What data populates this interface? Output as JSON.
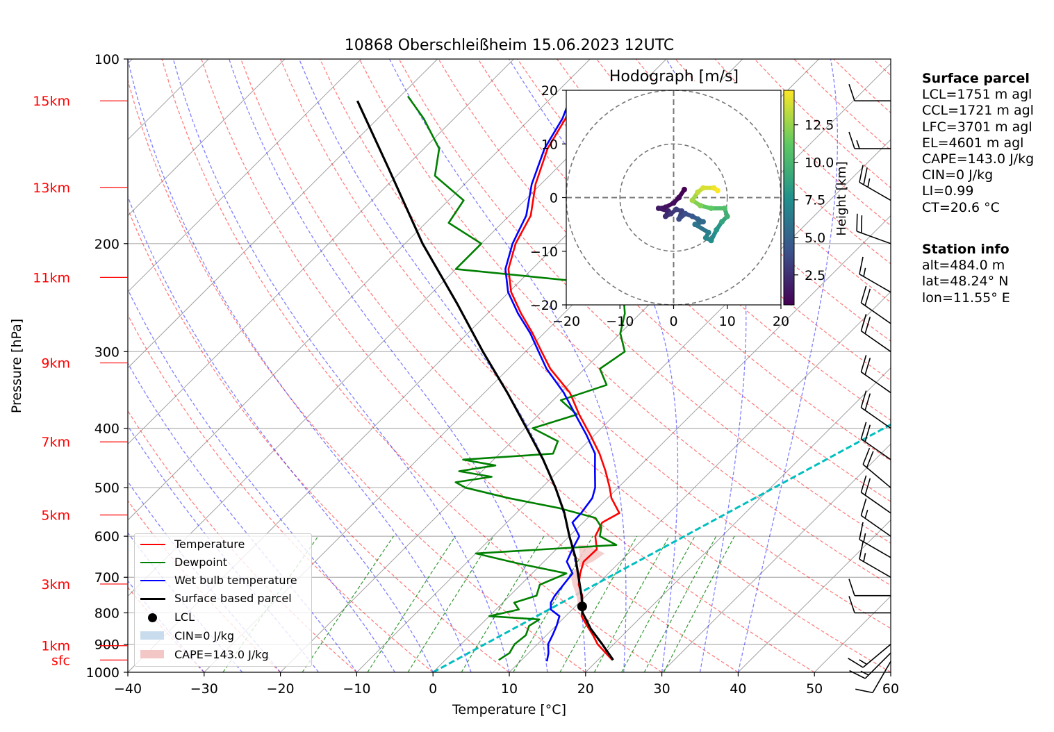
{
  "title": "10868 Oberschleißheim 15.06.2023 12UTC",
  "chart_data": {
    "type": "skew-t",
    "xlabel": "Temperature [°C]",
    "ylabel": "Pressure [hPa]",
    "xlim": [
      -40,
      60
    ],
    "ylim": [
      1000,
      100
    ],
    "x_ticks": [
      -40,
      -30,
      -20,
      -10,
      0,
      10,
      20,
      30,
      40,
      50,
      60
    ],
    "x_tick_labels": [
      "−40",
      "−30",
      "−20",
      "−10",
      "0",
      "10",
      "20",
      "30",
      "40",
      "50",
      "60"
    ],
    "pressure_ticks": [
      1000,
      900,
      800,
      700,
      600,
      500,
      400,
      300,
      200,
      100
    ],
    "pressure_tick_labels": [
      "1000",
      "900",
      "800",
      "700",
      "600",
      "500",
      "400",
      "300",
      "200",
      "100"
    ],
    "height_labels": [
      {
        "label": "sfc",
        "p": 955
      },
      {
        "label": "1km",
        "p": 905
      },
      {
        "label": "3km",
        "p": 718
      },
      {
        "label": "5km",
        "p": 554
      },
      {
        "label": "7km",
        "p": 421
      },
      {
        "label": "9km",
        "p": 313
      },
      {
        "label": "11km",
        "p": 227
      },
      {
        "label": "13km",
        "p": 162
      },
      {
        "label": "15km",
        "p": 117
      }
    ],
    "height_label_color": "#ff0000",
    "skew_factor": 35,
    "grid": true,
    "series": [
      {
        "name": "Temperature",
        "color": "#ff0000",
        "p": [
          955,
          930,
          900,
          870,
          840,
          810,
          780,
          750,
          720,
          690,
          660,
          630,
          600,
          570,
          550,
          520,
          500,
          470,
          440,
          410,
          380,
          350,
          320,
          300,
          280,
          260,
          240,
          220,
          200,
          180,
          160,
          140,
          125,
          115
        ],
        "t": [
          21.9,
          20.1,
          17.9,
          16.1,
          14.1,
          12.1,
          10.9,
          9.5,
          7.6,
          6.3,
          5.2,
          5.3,
          3.4,
          2.5,
          3.5,
          0.5,
          -1.1,
          -3.8,
          -6.9,
          -10.6,
          -14.7,
          -18.8,
          -24.5,
          -27.9,
          -31.5,
          -35.6,
          -39.7,
          -43.1,
          -45.5,
          -47.2,
          -50.7,
          -53.8,
          -55.4,
          -57.2
        ]
      },
      {
        "name": "Dewpoint",
        "color": "#008000",
        "p": [
          955,
          930,
          900,
          870,
          840,
          820,
          810,
          790,
          770,
          750,
          720,
          690,
          665,
          640,
          620,
          600,
          580,
          560,
          540,
          520,
          500,
          490,
          480,
          470,
          460,
          450,
          440,
          420,
          400,
          380,
          360,
          340,
          320,
          300,
          280,
          260,
          240,
          230,
          220,
          200,
          185,
          170,
          155,
          140,
          125,
          115
        ],
        "t": [
          7.0,
          7.5,
          7.0,
          7.3,
          6.5,
          7.0,
          0.0,
          3.0,
          1.5,
          3.5,
          2.5,
          4.5,
          -3.0,
          -10.0,
          7.3,
          4.0,
          3.0,
          1.0,
          -5.0,
          -13.0,
          -20.0,
          -22.0,
          -18.0,
          -23.0,
          -19.0,
          -24.0,
          -13.0,
          -14.0,
          -19.0,
          -15.0,
          -19.0,
          -15.0,
          -18.0,
          -17.0,
          -20.0,
          -22.0,
          -25.0,
          -33.0,
          -50.0,
          -50.0,
          -57.0,
          -58.0,
          -65.0,
          -68.0,
          -74.0,
          -79.0
        ]
      },
      {
        "name": "Wet bulb temperature",
        "color": "#0000ff",
        "p": [
          960,
          930,
          900,
          870,
          840,
          810,
          790,
          770,
          750,
          720,
          690,
          660,
          630,
          600,
          570,
          550,
          520,
          500,
          470,
          440,
          410,
          380,
          350,
          320,
          300,
          280,
          260,
          240,
          220,
          200,
          180,
          160,
          140,
          125,
          115
        ],
        "t": [
          13.5,
          12.6,
          11.4,
          10.8,
          10.1,
          9.2,
          7.2,
          6.3,
          5.9,
          5.6,
          5.3,
          3.0,
          2.1,
          1.3,
          -1.4,
          -1.5,
          -2.0,
          -3.0,
          -5.2,
          -7.5,
          -11.1,
          -15.2,
          -19.6,
          -25.0,
          -28.3,
          -31.8,
          -36.0,
          -40.1,
          -43.5,
          -45.9,
          -47.8,
          -51.2,
          -54.2,
          -55.8,
          -57.6
        ]
      },
      {
        "name": "Surface based parcel",
        "color": "#000000",
        "p": [
          955,
          900,
          850,
          800,
          781,
          750,
          700,
          650,
          600,
          550,
          500,
          450,
          400,
          350,
          300,
          250,
          200,
          150,
          117
        ],
        "t": [
          22.0,
          18.5,
          15.0,
          11.8,
          10.9,
          9.4,
          6.6,
          3.6,
          0.0,
          -3.7,
          -8.2,
          -13.5,
          -19.8,
          -27.0,
          -35.6,
          -45.4,
          -57.7,
          -72.3,
          -85.0
        ]
      }
    ],
    "lcl": {
      "label": "LCL",
      "p": 781,
      "t": 10.9
    },
    "cin_label": "CIN=0 J/kg",
    "cape_label": "CAPE=143.0 J/kg",
    "cape_region": {
      "p": [
        780,
        760,
        740,
        720,
        700,
        680,
        660,
        640,
        620
      ],
      "t_parcel": [
        10.9,
        10.1,
        8.9,
        7.5,
        6.6,
        5.6,
        4.6,
        3.6,
        2.3
      ],
      "t_env": [
        10.3,
        9.3,
        8.1,
        6.8,
        5.6,
        5.0,
        6.4,
        6.9,
        3.4
      ]
    },
    "cyan_line": {
      "color": "#00bfbf",
      "points": [
        {
          "p": 1000,
          "t": 0
        },
        {
          "p": 145,
          "t": 57
        }
      ]
    },
    "legend": {
      "position": "lower left",
      "entries": [
        "Temperature",
        "Dewpoint",
        "Wet bulb temperature",
        "Surface based parcel",
        "LCL",
        "CIN=0 J/kg",
        "CAPE=143.0 J/kg"
      ]
    },
    "wind_barbs": [
      {
        "p": 960,
        "dir": 210,
        "spd_kt": 10
      },
      {
        "p": 930,
        "dir": 225,
        "spd_kt": 15
      },
      {
        "p": 900,
        "dir": 230,
        "spd_kt": 15
      },
      {
        "p": 800,
        "dir": 270,
        "spd_kt": 10
      },
      {
        "p": 750,
        "dir": 270,
        "spd_kt": 10
      },
      {
        "p": 700,
        "dir": 300,
        "spd_kt": 15
      },
      {
        "p": 650,
        "dir": 300,
        "spd_kt": 15
      },
      {
        "p": 600,
        "dir": 305,
        "spd_kt": 15
      },
      {
        "p": 550,
        "dir": 305,
        "spd_kt": 20
      },
      {
        "p": 500,
        "dir": 310,
        "spd_kt": 20
      },
      {
        "p": 450,
        "dir": 305,
        "spd_kt": 20
      },
      {
        "p": 400,
        "dir": 305,
        "spd_kt": 20
      },
      {
        "p": 350,
        "dir": 305,
        "spd_kt": 20
      },
      {
        "p": 300,
        "dir": 305,
        "spd_kt": 20
      },
      {
        "p": 270,
        "dir": 305,
        "spd_kt": 20
      },
      {
        "p": 240,
        "dir": 300,
        "spd_kt": 15
      },
      {
        "p": 200,
        "dir": 290,
        "spd_kt": 20
      },
      {
        "p": 170,
        "dir": 300,
        "spd_kt": 25
      },
      {
        "p": 140,
        "dir": 270,
        "spd_kt": 15
      },
      {
        "p": 117,
        "dir": 270,
        "spd_kt": 10
      }
    ],
    "hodograph": {
      "title": "Hodograph [m/s]",
      "xlim": [
        -20,
        20
      ],
      "ylim": [
        -20,
        20
      ],
      "ticks": [
        -20,
        -10,
        0,
        10,
        20
      ],
      "tick_labels": [
        "−20",
        "−10",
        "0",
        "10",
        "20"
      ],
      "rings": [
        10,
        20
      ],
      "colorbar_label": "Height [km]",
      "colorbar_ticks": [
        2.5,
        5.0,
        7.5,
        10.0,
        12.5
      ],
      "colorbar_range": [
        0.5,
        14.8
      ],
      "points": [
        {
          "u": 2.0,
          "v": 1.5,
          "h": 0.5
        },
        {
          "u": 1.0,
          "v": 0.0,
          "h": 0.8
        },
        {
          "u": 0.0,
          "v": -1.0,
          "h": 1.0
        },
        {
          "u": -1.5,
          "v": -1.8,
          "h": 1.3
        },
        {
          "u": -2.8,
          "v": -2.0,
          "h": 1.6
        },
        {
          "u": -1.0,
          "v": -2.5,
          "h": 2.0
        },
        {
          "u": -1.5,
          "v": -3.5,
          "h": 2.4
        },
        {
          "u": -0.5,
          "v": -3.0,
          "h": 2.8
        },
        {
          "u": 0.5,
          "v": -2.2,
          "h": 3.1
        },
        {
          "u": 1.5,
          "v": -2.5,
          "h": 3.4
        },
        {
          "u": 1.0,
          "v": -4.0,
          "h": 3.7
        },
        {
          "u": 2.2,
          "v": -3.0,
          "h": 4.0
        },
        {
          "u": 3.5,
          "v": -3.5,
          "h": 4.4
        },
        {
          "u": 4.5,
          "v": -4.0,
          "h": 5.0
        },
        {
          "u": 5.5,
          "v": -4.5,
          "h": 5.5
        },
        {
          "u": 4.0,
          "v": -5.0,
          "h": 6.0
        },
        {
          "u": 6.5,
          "v": -6.5,
          "h": 6.6
        },
        {
          "u": 6.0,
          "v": -7.5,
          "h": 7.0
        },
        {
          "u": 7.0,
          "v": -8.0,
          "h": 7.4
        },
        {
          "u": 8.0,
          "v": -6.0,
          "h": 8.0
        },
        {
          "u": 9.0,
          "v": -4.5,
          "h": 8.8
        },
        {
          "u": 10.0,
          "v": -3.5,
          "h": 9.5
        },
        {
          "u": 9.5,
          "v": -2.0,
          "h": 10.5
        },
        {
          "u": 7.0,
          "v": -2.0,
          "h": 11.2
        },
        {
          "u": 5.0,
          "v": -1.5,
          "h": 12.0
        },
        {
          "u": 3.5,
          "v": -0.5,
          "h": 12.8
        },
        {
          "u": 4.5,
          "v": 1.0,
          "h": 13.5
        },
        {
          "u": 5.5,
          "v": 1.8,
          "h": 14.0
        },
        {
          "u": 7.5,
          "v": 1.8,
          "h": 14.5
        },
        {
          "u": 8.2,
          "v": 1.3,
          "h": 14.8
        }
      ]
    }
  },
  "surface_parcel": {
    "title": "Surface parcel",
    "lines": [
      "LCL=1751 m agl",
      "CCL=1721 m agl",
      "LFC=3701 m agl",
      "EL=4601 m agl",
      "CAPE=143.0 J/kg",
      "CIN=0 J/kg",
      "LI=0.99",
      "CT=20.6 °C"
    ]
  },
  "station_info": {
    "title": "Station info",
    "lines": [
      "alt=484.0 m",
      "lat=48.24° N",
      "lon=11.55° E"
    ]
  },
  "colors": {
    "dry_adiabat": "#ff0000",
    "moist_adiabat": "#0000ff",
    "mixing_ratio": "#008000",
    "isotherm": "#808080",
    "cape_fill": "#f4c7c7",
    "cin_fill": "#c9dced"
  }
}
